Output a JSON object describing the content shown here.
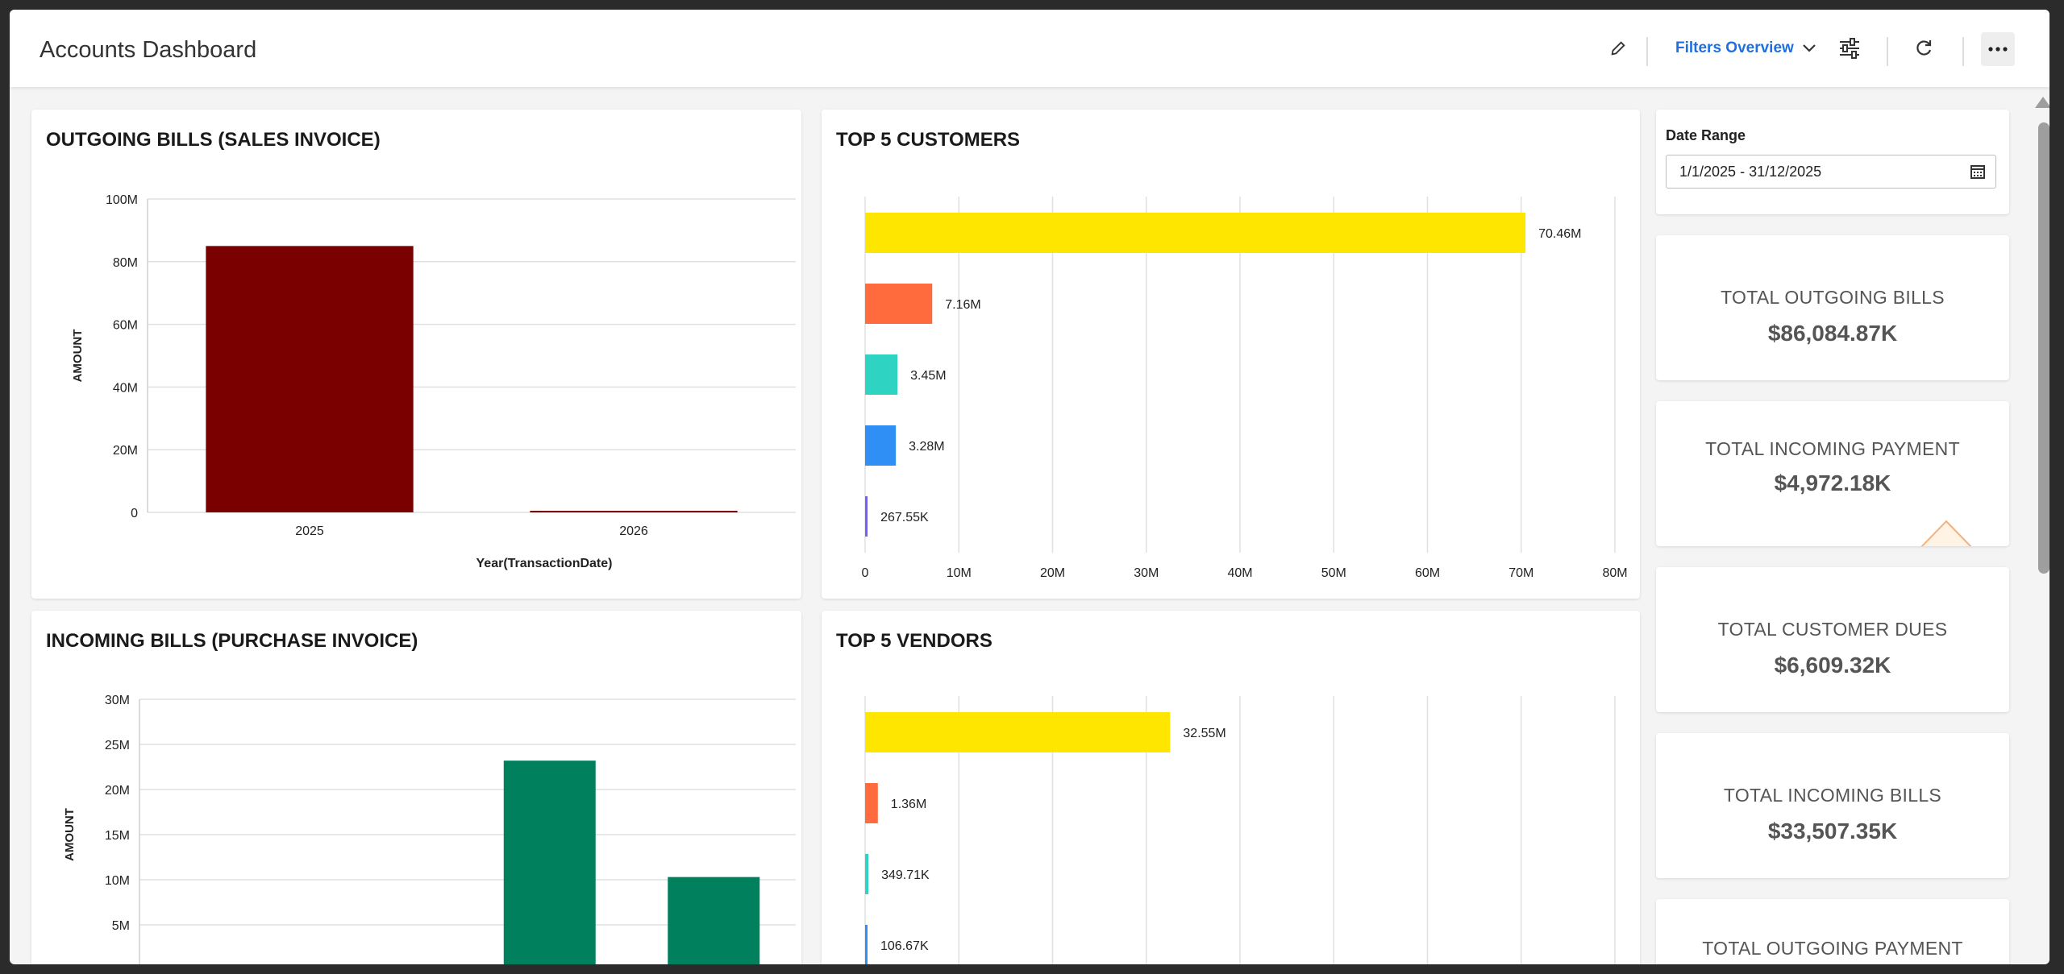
{
  "header": {
    "title": "Accounts Dashboard",
    "filters_label": "Filters Overview"
  },
  "date_range": {
    "label": "Date Range",
    "value": "1/1/2025 - 31/12/2025"
  },
  "kpis": [
    {
      "label": "TOTAL OUTGOING BILLS",
      "value": "$86,084.87K"
    },
    {
      "label": "TOTAL INCOMING PAYMENT",
      "value": "$4,972.18K"
    },
    {
      "label": "TOTAL CUSTOMER DUES",
      "value": "$6,609.32K"
    },
    {
      "label": "TOTAL INCOMING BILLS",
      "value": "$33,507.35K"
    },
    {
      "label": "TOTAL OUTGOING PAYMENT",
      "value": ""
    }
  ],
  "chart_data": [
    {
      "type": "bar",
      "title": "OUTGOING BILLS (SALES INVOICE)",
      "xlabel": "Year(TransactionDate)",
      "ylabel": "AMOUNT",
      "categories": [
        "2025",
        "2026"
      ],
      "values": [
        85,
        0.5
      ],
      "ylim": [
        0,
        100
      ],
      "yticks": [
        "0",
        "20M",
        "40M",
        "60M",
        "80M",
        "100M"
      ],
      "color": "#7a0000",
      "grid": true
    },
    {
      "type": "bar",
      "orientation": "horizontal",
      "title": "TOP 5 CUSTOMERS",
      "values": [
        70.46,
        7.16,
        3.45,
        3.28,
        0.26755
      ],
      "data_labels": [
        "70.46M",
        "7.16M",
        "3.45M",
        "3.28M",
        "267.55K"
      ],
      "colors": [
        "#ffe600",
        "#ff6b3d",
        "#2ed3c2",
        "#2f8ff5",
        "#7a5cff"
      ],
      "xlim": [
        0,
        80
      ],
      "xticks": [
        "0",
        "10M",
        "20M",
        "30M",
        "40M",
        "50M",
        "60M",
        "70M",
        "80M"
      ],
      "grid": true
    },
    {
      "type": "bar",
      "title": "INCOMING BILLS (PURCHASE INVOICE)",
      "ylabel": "AMOUNT",
      "values": [
        0,
        0,
        23.2,
        10.3
      ],
      "ylim": [
        0,
        30
      ],
      "yticks": [
        "0",
        "5M",
        "10M",
        "15M",
        "20M",
        "25M",
        "30M"
      ],
      "color": "#00805c",
      "grid": true
    },
    {
      "type": "bar",
      "orientation": "horizontal",
      "title": "TOP 5 VENDORS",
      "values": [
        32.55,
        1.36,
        0.34971,
        0.10667
      ],
      "data_labels": [
        "32.55M",
        "1.36M",
        "349.71K",
        "106.67K"
      ],
      "colors": [
        "#ffe600",
        "#ff6b3d",
        "#2ed3c2",
        "#2f8ff5"
      ],
      "xlim": [
        0,
        80
      ],
      "grid": true
    }
  ]
}
